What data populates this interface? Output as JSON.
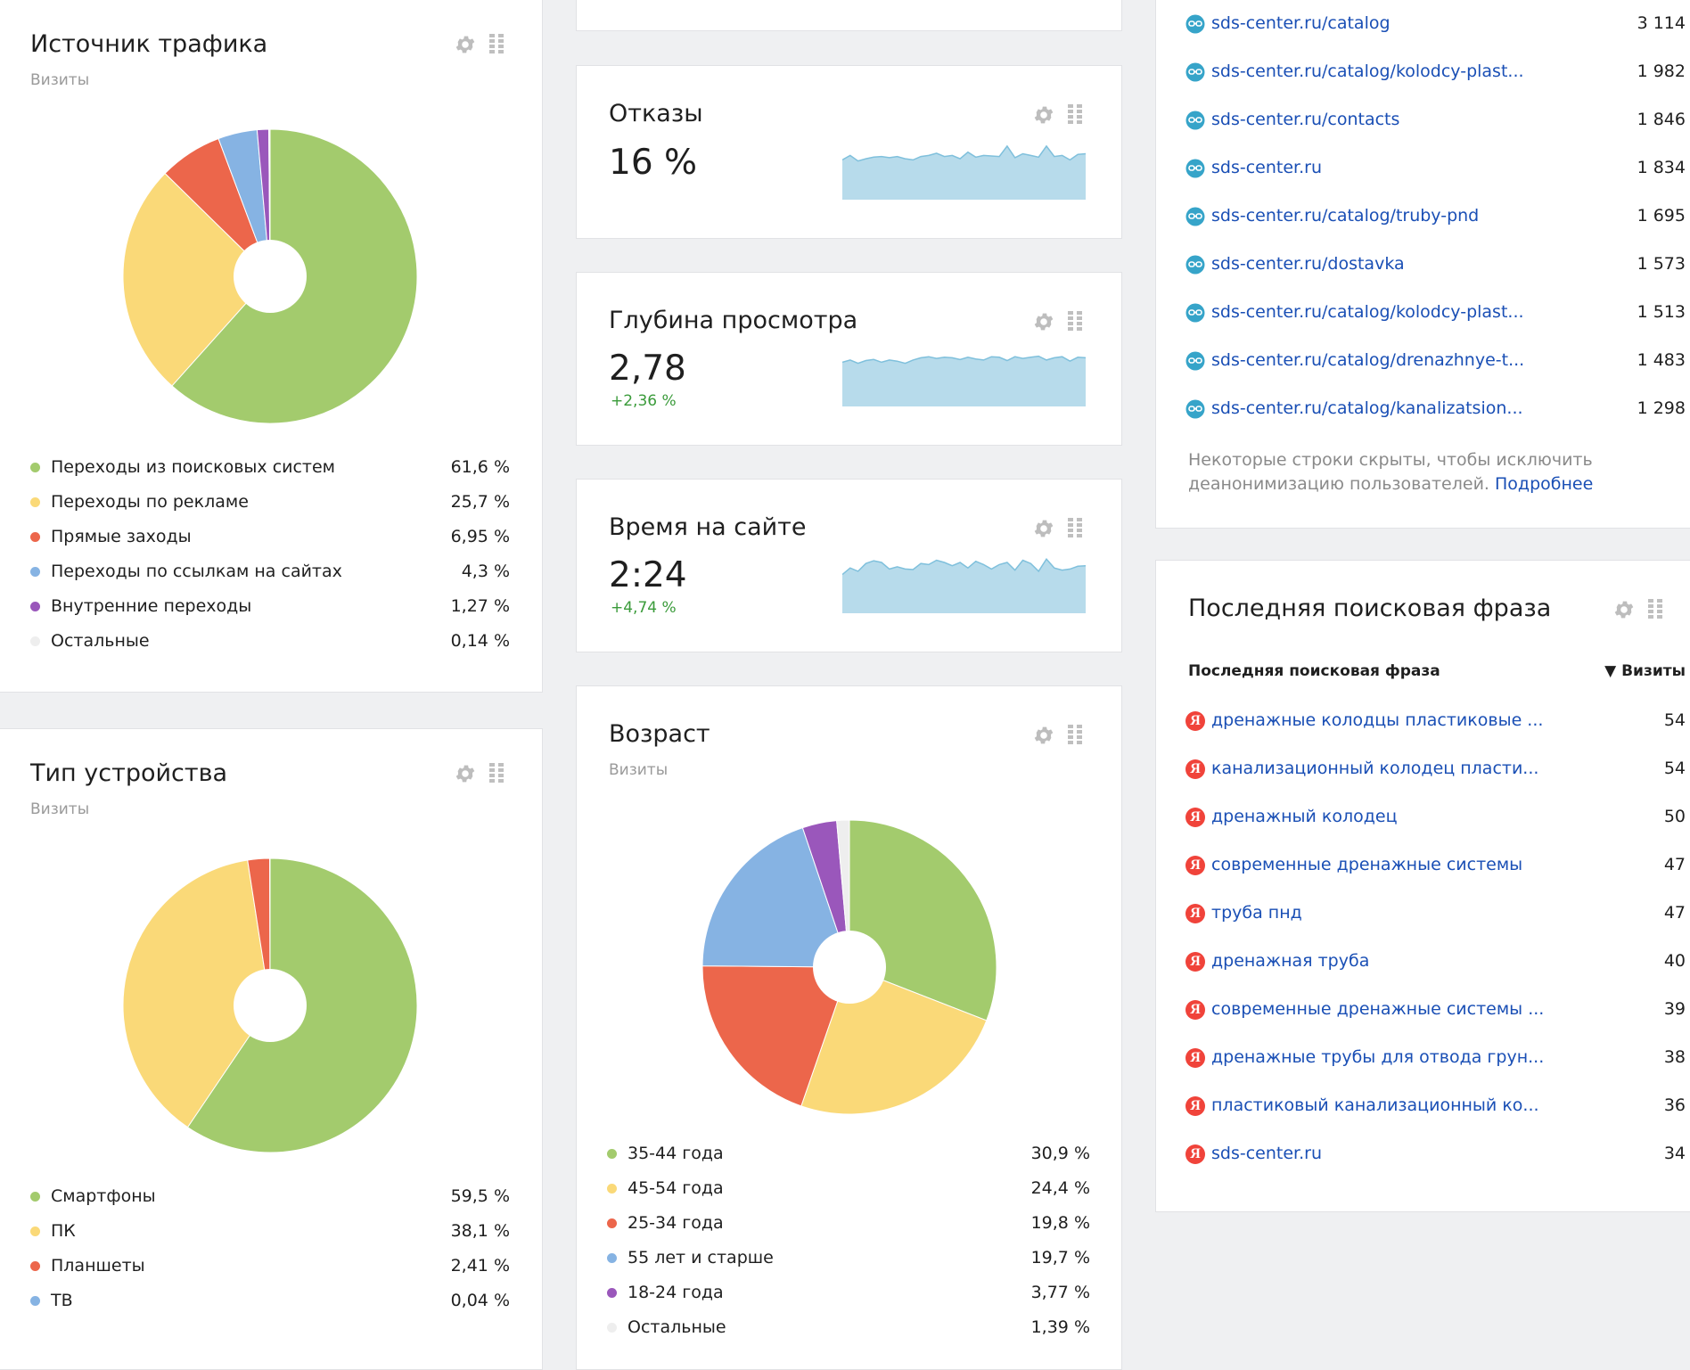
{
  "traffic": {
    "title": "Источник трафика",
    "subtitle": "Визиты",
    "chart_data": {
      "type": "pie",
      "categories": [
        "Переходы из поисковых систем",
        "Переходы по рекламе",
        "Прямые заходы",
        "Переходы по ссылкам на сайтах",
        "Внутренние переходы",
        "Остальные"
      ],
      "values": [
        61.6,
        25.7,
        6.95,
        4.3,
        1.27,
        0.14
      ],
      "labels": [
        "61,6 %",
        "25,7 %",
        "6,95 %",
        "4,3 %",
        "1,27 %",
        "0,14 %"
      ],
      "colors": [
        "#a3cb6d",
        "#fad978",
        "#ec664b",
        "#86b3e3",
        "#9a57bb",
        "#eeeeee"
      ]
    }
  },
  "device": {
    "title": "Тип устройства",
    "subtitle": "Визиты",
    "chart_data": {
      "type": "pie",
      "categories": [
        "Смартфоны",
        "ПК",
        "Планшеты",
        "ТВ"
      ],
      "values": [
        59.5,
        38.1,
        2.41,
        0.04
      ],
      "labels": [
        "59,5 %",
        "38,1 %",
        "2,41 %",
        "0,04 %"
      ],
      "colors": [
        "#a3cb6d",
        "#fad978",
        "#ec664b",
        "#86b3e3"
      ]
    }
  },
  "bounces": {
    "title": "Отказы",
    "value": "16 %",
    "series": [
      0.72,
      0.8,
      0.7,
      0.74,
      0.77,
      0.78,
      0.76,
      0.78,
      0.74,
      0.72,
      0.78,
      0.8,
      0.84,
      0.78,
      0.8,
      0.74,
      0.86,
      0.77,
      0.8,
      0.79,
      0.78,
      0.97,
      0.76,
      0.83,
      0.8,
      0.77,
      0.97,
      0.78,
      0.8,
      0.72,
      0.82,
      0.83
    ]
  },
  "depth": {
    "title": "Глубина просмотра",
    "value": "2,78",
    "delta": "+2,36 %",
    "series": [
      0.8,
      0.84,
      0.78,
      0.83,
      0.85,
      0.8,
      0.84,
      0.82,
      0.78,
      0.84,
      0.88,
      0.9,
      0.87,
      0.89,
      0.88,
      0.85,
      0.89,
      0.86,
      0.84,
      0.9,
      0.89,
      0.83,
      0.9,
      0.87,
      0.89,
      0.91,
      0.84,
      0.88,
      0.9,
      0.82,
      0.89,
      0.88
    ]
  },
  "time": {
    "title": "Время на сайте",
    "value": "2:24",
    "delta": "+4,74 %",
    "series": [
      0.7,
      0.82,
      0.76,
      0.9,
      0.95,
      0.92,
      0.8,
      0.84,
      0.8,
      0.79,
      0.9,
      0.88,
      0.96,
      0.92,
      0.86,
      0.92,
      0.82,
      0.94,
      0.88,
      0.8,
      0.88,
      0.92,
      0.78,
      0.96,
      0.9,
      0.76,
      0.98,
      0.82,
      0.78,
      0.8,
      0.85,
      0.86
    ]
  },
  "age": {
    "title": "Возраст",
    "subtitle": "Визиты",
    "chart_data": {
      "type": "pie",
      "categories": [
        "35-44 года",
        "45-54 года",
        "25-34 года",
        "55 лет и старше",
        "18-24 года",
        "Остальные"
      ],
      "values": [
        30.9,
        24.4,
        19.8,
        19.7,
        3.77,
        1.39
      ],
      "labels": [
        "30,9 %",
        "24,4 %",
        "19,8 %",
        "19,7 %",
        "3,77 %",
        "1,39 %"
      ],
      "colors": [
        "#a3cb6d",
        "#fad978",
        "#ec664b",
        "#86b3e3",
        "#9a57bb",
        "#eeeeee"
      ]
    }
  },
  "pages": {
    "rows": [
      {
        "url": "sds-center.ru/catalog",
        "count": "3 114"
      },
      {
        "url": "sds-center.ru/catalog/kolodcy-plast...",
        "count": "1 982"
      },
      {
        "url": "sds-center.ru/contacts",
        "count": "1 846"
      },
      {
        "url": "sds-center.ru",
        "count": "1 834"
      },
      {
        "url": "sds-center.ru/catalog/truby-pnd",
        "count": "1 695"
      },
      {
        "url": "sds-center.ru/dostavka",
        "count": "1 573"
      },
      {
        "url": "sds-center.ru/catalog/kolodcy-plast...",
        "count": "1 513"
      },
      {
        "url": "sds-center.ru/catalog/drenazhnye-t...",
        "count": "1 483"
      },
      {
        "url": "sds-center.ru/catalog/kanalizatsion...",
        "count": "1 298"
      }
    ],
    "note": "Некоторые строки скрыты, чтобы исключить деанонимизацию пользователей.",
    "note_link": "Подробнее"
  },
  "search": {
    "title": "Последняя поисковая фраза",
    "col_phrase": "Последняя поисковая фраза",
    "col_visits": "▼ Визиты",
    "rows": [
      {
        "phrase": "дренажные колодцы пластиковые ...",
        "count": "54"
      },
      {
        "phrase": "канализационный колодец пласти...",
        "count": "54"
      },
      {
        "phrase": "дренажный колодец",
        "count": "50"
      },
      {
        "phrase": "современные дренажные системы",
        "count": "47"
      },
      {
        "phrase": "труба пнд",
        "count": "47"
      },
      {
        "phrase": "дренажная труба",
        "count": "40"
      },
      {
        "phrase": "современные дренажные системы ...",
        "count": "39"
      },
      {
        "phrase": "дренажные трубы для отвода грун...",
        "count": "38"
      },
      {
        "phrase": "пластиковый канализационный ко...",
        "count": "36"
      },
      {
        "phrase": "sds-center.ru",
        "count": "34"
      }
    ]
  },
  "icons": {
    "gear": "gear-icon",
    "drag": "drag-handle-icon",
    "page": "page-link-icon",
    "yandex": "yandex-icon"
  },
  "yandex_letter": "Я"
}
